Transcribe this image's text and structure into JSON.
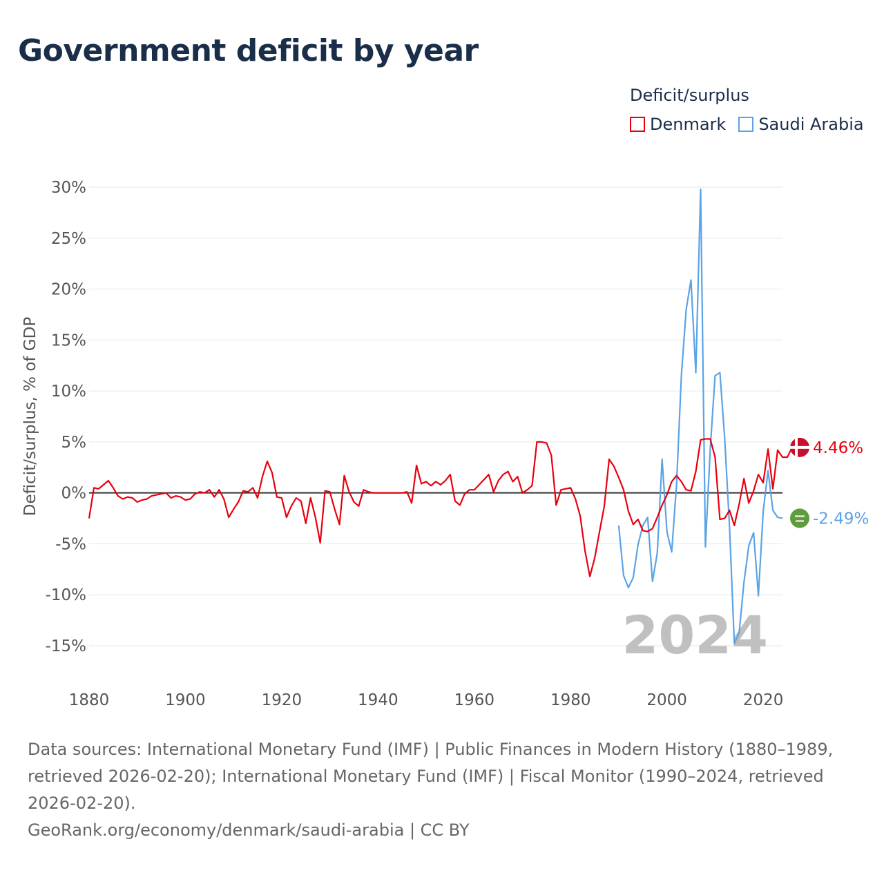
{
  "title": "Government deficit by year",
  "source_note": "Data sources: International Monetary Fund (IMF) | Public Finances in Modern History (1880–1989, retrieved 2026-02-20); International Monetary Fund (IMF) | Fiscal Monitor (1990–2024, retrieved 2026-02-20).",
  "site_note": "GeoRank.org/economy/denmark/saudi-arabia | CC BY",
  "colors": {
    "denmark": "#e8000d",
    "saudi": "#5aa3e6",
    "saudi_badge": "#5e9c3c",
    "axis_text": "#555555",
    "grid": "#e6e6e6",
    "zero": "#333333",
    "year_watermark": "#c0c0c0"
  },
  "chart_data": {
    "type": "line",
    "title": "Government deficit by year",
    "xlabel": "",
    "ylabel": "Deficit/surplus, % of GDP",
    "xlim": [
      1880,
      2024
    ],
    "ylim": [
      -15,
      30
    ],
    "x_ticks": [
      1880,
      1900,
      1920,
      1940,
      1960,
      1980,
      2000,
      2020
    ],
    "y_ticks": [
      -15,
      -10,
      -5,
      0,
      5,
      10,
      15,
      20,
      25,
      30
    ],
    "y_tick_labels": [
      "-15%",
      "-10%",
      "-5%",
      "0%",
      "5%",
      "10%",
      "15%",
      "20%",
      "25%",
      "30%"
    ],
    "legend_title": "Deficit/surplus",
    "legend_position": "top-right",
    "year_label": "2024",
    "series": [
      {
        "name": "Denmark",
        "color": "#e8000d",
        "end_label": "4.46%",
        "x_start": 1880,
        "values": [
          -2.5,
          0.5,
          0.4,
          0.8,
          1.2,
          0.5,
          -0.3,
          -0.6,
          -0.4,
          -0.5,
          -0.9,
          -0.7,
          -0.6,
          -0.3,
          -0.2,
          -0.1,
          0,
          -0.5,
          -0.3,
          -0.4,
          -0.7,
          -0.6,
          -0.1,
          0.1,
          0,
          0.3,
          -0.4,
          0.3,
          -0.6,
          -2.4,
          -1.6,
          -0.9,
          0.2,
          0.1,
          0.5,
          -0.5,
          1.6,
          3.1,
          2,
          -0.4,
          -0.5,
          -2.4,
          -1.3,
          -0.5,
          -0.8,
          -3,
          -0.5,
          -2.4,
          -4.9,
          0.2,
          0.1,
          -1.6,
          -3.1,
          1.7,
          0.1,
          -0.9,
          -1.3,
          0.3,
          0.1,
          0,
          0,
          0,
          0,
          0,
          0,
          0,
          0.1,
          -1,
          2.7,
          0.9,
          1.1,
          0.7,
          1.1,
          0.8,
          1.2,
          1.8,
          -0.8,
          -1.2,
          -0.1,
          0.3,
          0.3,
          0.8,
          1.3,
          1.8,
          0.1,
          1.2,
          1.8,
          2.1,
          1.1,
          1.6,
          0,
          0.3,
          0.7,
          5,
          5,
          4.9,
          3.7,
          -1.2,
          0.3,
          0.4,
          0.5,
          -0.6,
          -2.3,
          -5.7,
          -8.2,
          -6.4,
          -3.8,
          -1.3,
          3.3,
          2.6,
          1.5,
          0.3,
          -1.8,
          -3.1,
          -2.6,
          -3.7,
          -3.8,
          -3.5,
          -2.4,
          -1.2,
          -0.2,
          1.1,
          1.7,
          1.1,
          0.3,
          0.2,
          2.1,
          5.2,
          5.3,
          5.3,
          3.5,
          -2.6,
          -2.5,
          -1.7,
          -3.2,
          -1.1,
          1.4,
          -1,
          0.2,
          1.8,
          1,
          4.3,
          0.4,
          4.2,
          3.5,
          3.5,
          4.46
        ]
      },
      {
        "name": "Saudi Arabia",
        "color": "#5aa3e6",
        "end_label": "-2.49%",
        "x_start": 1990,
        "values": [
          -3.2,
          -8.1,
          -9.3,
          -8.3,
          -5.1,
          -3.2,
          -2.4,
          -8.7,
          -5.9,
          3.3,
          -3.8,
          -5.8,
          0.8,
          11.5,
          18,
          20.9,
          11.8,
          29.8,
          -5.3,
          4.3,
          11.5,
          11.8,
          5.4,
          -3.3,
          -14.8,
          -13.7,
          -8.8,
          -5.2,
          -3.9,
          -10.1,
          -1.8,
          2.2,
          -1.7,
          -2.4,
          -2.49
        ]
      }
    ]
  }
}
